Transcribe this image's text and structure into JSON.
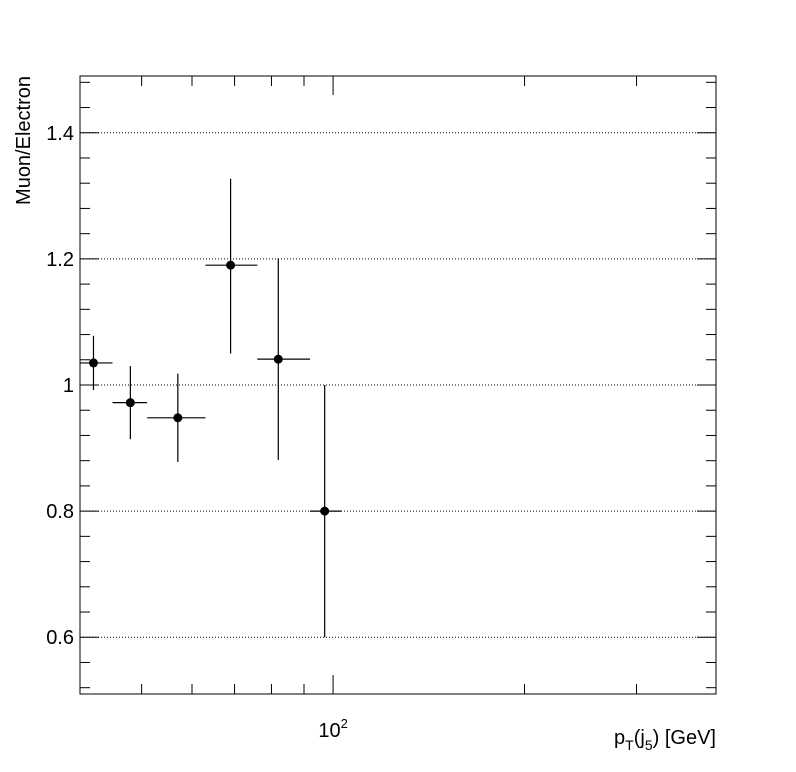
{
  "chart_data": {
    "type": "scatter",
    "title": "",
    "xlabel_parts": {
      "p": "p",
      "T": "T",
      "open": "(j",
      "five": "5",
      "rest": ") [GeV]"
    },
    "ylabel": "Muon/Electron",
    "x_scale": "log",
    "xlim": [
      40,
      400
    ],
    "ylim": [
      0.51,
      1.49
    ],
    "x_major_tick_label": {
      "base": "10",
      "exp": "2"
    },
    "y_tick_labels": [
      "0.6",
      "0.8",
      "1",
      "1.2",
      "1.4"
    ],
    "y_ticks": [
      0.6,
      0.8,
      1.0,
      1.2,
      1.4
    ],
    "grid": "horizontal dotted at major y ticks",
    "points": [
      {
        "x": 42,
        "x_low": 40,
        "x_high": 45,
        "y": 1.035,
        "y_err_low": 0.043,
        "y_err_high": 0.043
      },
      {
        "x": 48,
        "x_low": 45,
        "x_high": 51,
        "y": 0.972,
        "y_err_low": 0.058,
        "y_err_high": 0.058
      },
      {
        "x": 57,
        "x_low": 51,
        "x_high": 63,
        "y": 0.948,
        "y_err_low": 0.07,
        "y_err_high": 0.07
      },
      {
        "x": 69,
        "x_low": 63,
        "x_high": 76,
        "y": 1.19,
        "y_err_low": 0.14,
        "y_err_high": 0.137
      },
      {
        "x": 82,
        "x_low": 76,
        "x_high": 92,
        "y": 1.041,
        "y_err_low": 0.16,
        "y_err_high": 0.16
      },
      {
        "x": 97,
        "x_low": 92,
        "x_high": 103,
        "y": 0.8,
        "y_err_low": 0.2,
        "y_err_high": 0.2
      }
    ]
  }
}
